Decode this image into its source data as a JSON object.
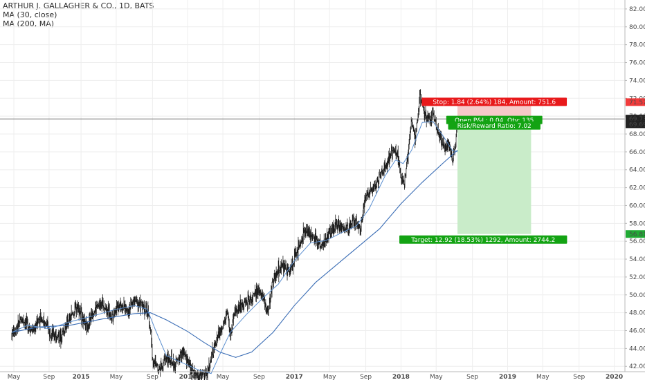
{
  "legend": {
    "title": "ARTHUR J. GALLAGHER & CO., 1D, BATS",
    "ma_short": "MA (30, close)",
    "ma_long": "MA (200, MA)"
  },
  "chart_data": {
    "type": "candlestick",
    "ylim": [
      41.4,
      83.0
    ],
    "y_ticks": [
      "42.00",
      "44.00",
      "46.00",
      "48.00",
      "50.00",
      "52.00",
      "54.00",
      "56.00",
      "58.00",
      "60.00",
      "62.00",
      "64.00",
      "66.00",
      "68.00",
      "70.00",
      "72.00",
      "74.00",
      "76.00",
      "78.00",
      "80.00",
      "82.00"
    ],
    "x_ticks": [
      {
        "label": "May",
        "t": 2014.37,
        "bold": false
      },
      {
        "label": "Sep",
        "t": 2014.7,
        "bold": false
      },
      {
        "label": "2015",
        "t": 2015.0,
        "bold": true
      },
      {
        "label": "May",
        "t": 2015.33,
        "bold": false
      },
      {
        "label": "Sep",
        "t": 2015.67,
        "bold": false
      },
      {
        "label": "2016",
        "t": 2016.0,
        "bold": true
      },
      {
        "label": "May",
        "t": 2016.33,
        "bold": false
      },
      {
        "label": "Sep",
        "t": 2016.67,
        "bold": false
      },
      {
        "label": "2017",
        "t": 2017.0,
        "bold": true
      },
      {
        "label": "May",
        "t": 2017.33,
        "bold": false
      },
      {
        "label": "Sep",
        "t": 2017.67,
        "bold": false
      },
      {
        "label": "2018",
        "t": 2018.0,
        "bold": true
      },
      {
        "label": "May",
        "t": 2018.33,
        "bold": false
      },
      {
        "label": "Sep",
        "t": 2018.67,
        "bold": false
      },
      {
        "label": "2019",
        "t": 2019.0,
        "bold": true
      },
      {
        "label": "May",
        "t": 2019.33,
        "bold": false
      },
      {
        "label": "Sep",
        "t": 2019.67,
        "bold": false
      },
      {
        "label": "2020",
        "t": 2020.0,
        "bold": true
      }
    ],
    "price_path": [
      [
        2014.35,
        45.6
      ],
      [
        2014.45,
        47.3
      ],
      [
        2014.55,
        46.0
      ],
      [
        2014.62,
        47.6
      ],
      [
        2014.72,
        45.7
      ],
      [
        2014.8,
        45.2
      ],
      [
        2014.9,
        47.4
      ],
      [
        2014.97,
        48.8
      ],
      [
        2015.05,
        46.2
      ],
      [
        2015.12,
        48.3
      ],
      [
        2015.2,
        49.2
      ],
      [
        2015.28,
        47.6
      ],
      [
        2015.36,
        49.0
      ],
      [
        2015.44,
        48.3
      ],
      [
        2015.5,
        49.4
      ],
      [
        2015.58,
        48.7
      ],
      [
        2015.63,
        47.9
      ],
      [
        2015.655,
        45.8
      ],
      [
        2015.67,
        42.6
      ],
      [
        2015.73,
        41.8
      ],
      [
        2015.8,
        43.0
      ],
      [
        2015.88,
        42.1
      ],
      [
        2015.95,
        43.6
      ],
      [
        2016.0,
        42.6
      ],
      [
        2016.04,
        41.5
      ],
      [
        2016.1,
        40.8
      ],
      [
        2016.18,
        41.2
      ],
      [
        2016.22,
        42.8
      ],
      [
        2016.28,
        45.4
      ],
      [
        2016.33,
        46.3
      ],
      [
        2016.37,
        48.0
      ],
      [
        2016.4,
        45.5
      ],
      [
        2016.45,
        48.3
      ],
      [
        2016.53,
        49.2
      ],
      [
        2016.6,
        49.6
      ],
      [
        2016.68,
        50.6
      ],
      [
        2016.75,
        48.0
      ],
      [
        2016.8,
        51.7
      ],
      [
        2016.88,
        53.2
      ],
      [
        2016.95,
        52.6
      ],
      [
        2017.02,
        54.6
      ],
      [
        2017.1,
        57.3
      ],
      [
        2017.18,
        56.4
      ],
      [
        2017.25,
        55.4
      ],
      [
        2017.32,
        56.8
      ],
      [
        2017.4,
        58.1
      ],
      [
        2017.48,
        57.2
      ],
      [
        2017.55,
        58.3
      ],
      [
        2017.62,
        57.6
      ],
      [
        2017.67,
        61.2
      ],
      [
        2017.75,
        62.1
      ],
      [
        2017.82,
        63.6
      ],
      [
        2017.88,
        64.9
      ],
      [
        2017.93,
        66.4
      ],
      [
        2017.97,
        65.6
      ],
      [
        2018.0,
        63.2
      ],
      [
        2018.03,
        62.6
      ],
      [
        2018.06,
        65.2
      ],
      [
        2018.1,
        69.8
      ],
      [
        2018.13,
        67.2
      ],
      [
        2018.18,
        72.3
      ],
      [
        2018.22,
        70.6
      ],
      [
        2018.26,
        69.2
      ],
      [
        2018.3,
        70.3
      ],
      [
        2018.34,
        68.6
      ],
      [
        2018.38,
        67.3
      ],
      [
        2018.42,
        66.2
      ],
      [
        2018.45,
        67.2
      ],
      [
        2018.48,
        65.0
      ],
      [
        2018.51,
        66.4
      ],
      [
        2018.53,
        69.69
      ]
    ],
    "ma_30_path": [
      [
        2014.35,
        45.8
      ],
      [
        2014.5,
        46.6
      ],
      [
        2014.7,
        46.2
      ],
      [
        2014.9,
        47.0
      ],
      [
        2015.1,
        47.6
      ],
      [
        2015.3,
        48.3
      ],
      [
        2015.5,
        48.8
      ],
      [
        2015.62,
        48.4
      ],
      [
        2015.7,
        46.0
      ],
      [
        2015.8,
        43.2
      ],
      [
        2015.95,
        42.4
      ],
      [
        2016.1,
        41.6
      ],
      [
        2016.22,
        41.2
      ],
      [
        2016.3,
        43.3
      ],
      [
        2016.4,
        45.8
      ],
      [
        2016.55,
        47.8
      ],
      [
        2016.7,
        49.6
      ],
      [
        2016.85,
        51.2
      ],
      [
        2017.0,
        53.8
      ],
      [
        2017.15,
        55.8
      ],
      [
        2017.3,
        56.1
      ],
      [
        2017.45,
        57.0
      ],
      [
        2017.58,
        57.7
      ],
      [
        2017.7,
        59.6
      ],
      [
        2017.85,
        63.3
      ],
      [
        2017.95,
        65.1
      ],
      [
        2018.02,
        64.7
      ],
      [
        2018.1,
        66.2
      ],
      [
        2018.2,
        69.3
      ],
      [
        2018.3,
        69.4
      ],
      [
        2018.4,
        67.7
      ],
      [
        2018.48,
        66.2
      ],
      [
        2018.53,
        66.0
      ]
    ],
    "ma_200_path": [
      [
        2014.35,
        45.8
      ],
      [
        2014.6,
        46.4
      ],
      [
        2014.9,
        46.6
      ],
      [
        2015.2,
        47.3
      ],
      [
        2015.5,
        47.9
      ],
      [
        2015.65,
        48.0
      ],
      [
        2015.8,
        47.2
      ],
      [
        2016.0,
        45.9
      ],
      [
        2016.15,
        44.7
      ],
      [
        2016.3,
        43.6
      ],
      [
        2016.45,
        43.0
      ],
      [
        2016.6,
        43.6
      ],
      [
        2016.8,
        45.8
      ],
      [
        2017.0,
        48.8
      ],
      [
        2017.2,
        51.4
      ],
      [
        2017.4,
        53.4
      ],
      [
        2017.6,
        55.4
      ],
      [
        2017.8,
        57.4
      ],
      [
        2018.0,
        60.2
      ],
      [
        2018.2,
        62.6
      ],
      [
        2018.4,
        64.8
      ],
      [
        2018.53,
        66.2
      ]
    ],
    "price_line": {
      "value": 69.69,
      "label": "69.69"
    },
    "position": {
      "entry": 69.73,
      "entry_label": "69.73",
      "stop": 71.57,
      "stop_label": "71.57",
      "target": 56.81,
      "target_label": "56.81",
      "t_start": 2018.53,
      "t_end": 2019.22,
      "stop_text": "Stop: 1.84 (2.64%) 184, Amount: 751.6",
      "pnl_text": "Open P&L: 0.04, Qty: 135",
      "rr_text": "Risk/Reward Ratio: 7.02",
      "target_text": "Target: 12.92 (18.53%) 1292, Amount: 2744.2"
    },
    "colors": {
      "candle": "#1a1a1a",
      "ma30": "#5b8fd0",
      "ma200": "#3a6db5",
      "stop_zone": "#f6c9c9",
      "target_zone": "#c9ecc9",
      "stop_label_bg": "#e8191b",
      "target_label_bg": "#13a313",
      "axis_stop_bg": "#f23b3b",
      "axis_target_bg": "#1fab34",
      "axis_price_bg": "#222222"
    }
  }
}
